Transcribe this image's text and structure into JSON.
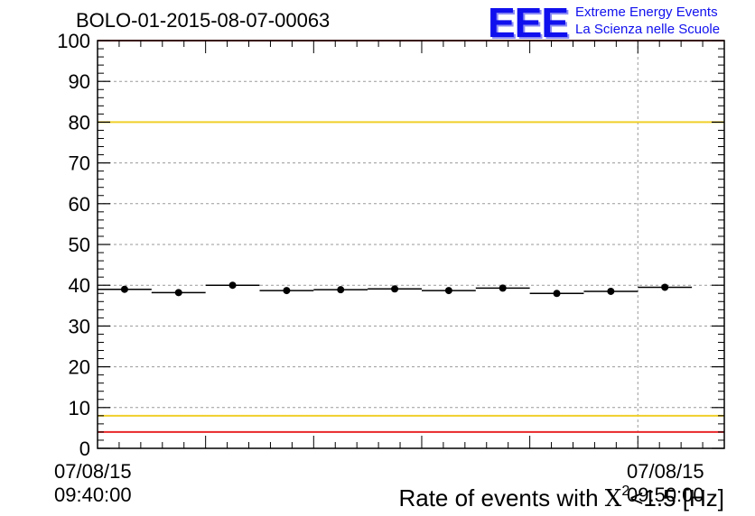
{
  "header": {
    "title": "BOLO-01-2015-08-07-00063",
    "logo_mark": "EEE",
    "logo_line1": "Extreme Energy Events",
    "logo_line2": "La Scienza nelle Scuole"
  },
  "x_axis": {
    "tick_left_date": "07/08/15",
    "tick_left_time": "09:40:00",
    "tick_right_date": "07/08/15",
    "tick_right_time": "09:50:00",
    "title_prefix": "Rate of events with ",
    "title_chi": "X",
    "title_sup": "2",
    "title_suffix": "<1.5 [Hz]"
  },
  "colors": {
    "frame_red": "#e8262a",
    "threshold_yellow": "#f0cf2a",
    "marker": "#000000",
    "grid": "#9a9a9a"
  },
  "chart_data": {
    "type": "scatter",
    "title": "BOLO-01-2015-08-07-00063",
    "xlabel": "Rate of events with X^2<1.5 [Hz]",
    "ylabel": "",
    "ylim": [
      0,
      100
    ],
    "yticks": [
      0,
      10,
      20,
      30,
      40,
      50,
      60,
      70,
      80,
      90,
      100
    ],
    "grid": true,
    "xlim_minutes": [
      0,
      11.6
    ],
    "x_tick_labels": [
      {
        "minute": 0,
        "date": "07/08/15",
        "time": "09:40:00"
      },
      {
        "minute": 10,
        "date": "07/08/15",
        "time": "09:50:00"
      }
    ],
    "bin_width_minutes": 1,
    "x_minutes": [
      0.5,
      1.5,
      2.5,
      3.5,
      4.5,
      5.5,
      6.5,
      7.5,
      8.5,
      9.5,
      10.5
    ],
    "values": [
      39.0,
      38.2,
      40.0,
      38.7,
      38.9,
      39.1,
      38.7,
      39.3,
      38.0,
      38.5,
      39.5
    ],
    "reference_lines": [
      {
        "y": 100,
        "color": "red"
      },
      {
        "y": 80,
        "color": "yellow"
      },
      {
        "y": 8,
        "color": "yellow"
      },
      {
        "y": 4,
        "color": "red"
      }
    ]
  }
}
